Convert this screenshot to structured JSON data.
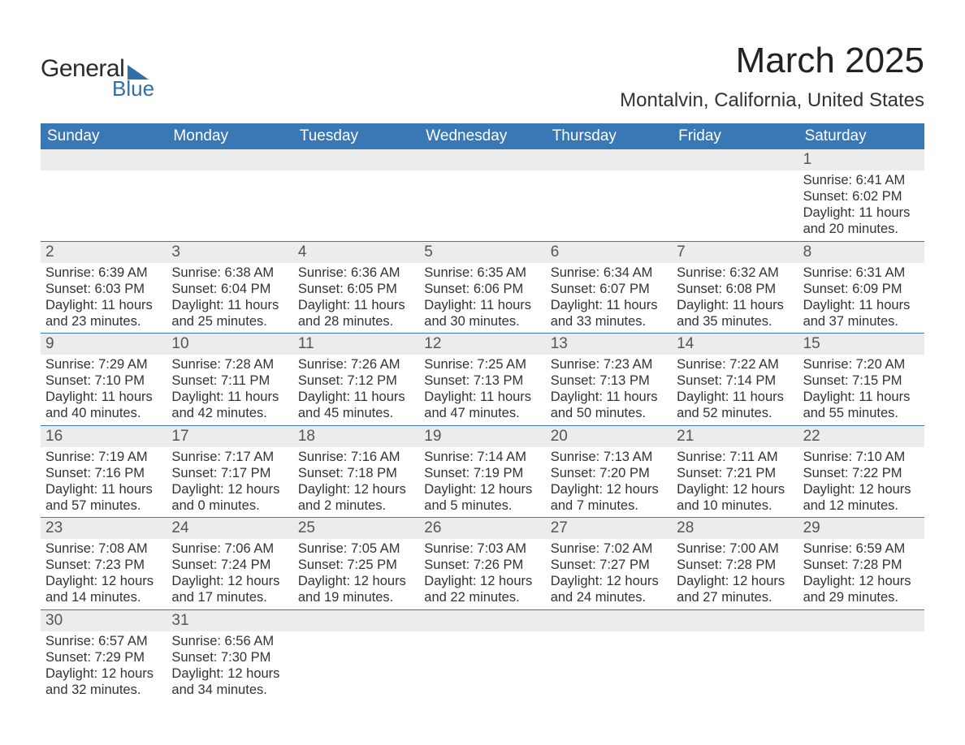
{
  "logo": {
    "text1": "General",
    "text2": "Blue",
    "shape_color": "#2f6fa7"
  },
  "title": "March 2025",
  "location": "Montalvin, California, United States",
  "theme": {
    "header_bg": "#3a78b5",
    "header_fg": "#ffffff",
    "daynum_bg": "#ececec",
    "border": "#3a78b5",
    "text": "#333333"
  },
  "weekdays": [
    "Sunday",
    "Monday",
    "Tuesday",
    "Wednesday",
    "Thursday",
    "Friday",
    "Saturday"
  ],
  "weeks": [
    [
      {
        "n": "",
        "sr": "",
        "ss": "",
        "dl1": "",
        "dl2": ""
      },
      {
        "n": "",
        "sr": "",
        "ss": "",
        "dl1": "",
        "dl2": ""
      },
      {
        "n": "",
        "sr": "",
        "ss": "",
        "dl1": "",
        "dl2": ""
      },
      {
        "n": "",
        "sr": "",
        "ss": "",
        "dl1": "",
        "dl2": ""
      },
      {
        "n": "",
        "sr": "",
        "ss": "",
        "dl1": "",
        "dl2": ""
      },
      {
        "n": "",
        "sr": "",
        "ss": "",
        "dl1": "",
        "dl2": ""
      },
      {
        "n": "1",
        "sr": "Sunrise: 6:41 AM",
        "ss": "Sunset: 6:02 PM",
        "dl1": "Daylight: 11 hours",
        "dl2": "and 20 minutes."
      }
    ],
    [
      {
        "n": "2",
        "sr": "Sunrise: 6:39 AM",
        "ss": "Sunset: 6:03 PM",
        "dl1": "Daylight: 11 hours",
        "dl2": "and 23 minutes."
      },
      {
        "n": "3",
        "sr": "Sunrise: 6:38 AM",
        "ss": "Sunset: 6:04 PM",
        "dl1": "Daylight: 11 hours",
        "dl2": "and 25 minutes."
      },
      {
        "n": "4",
        "sr": "Sunrise: 6:36 AM",
        "ss": "Sunset: 6:05 PM",
        "dl1": "Daylight: 11 hours",
        "dl2": "and 28 minutes."
      },
      {
        "n": "5",
        "sr": "Sunrise: 6:35 AM",
        "ss": "Sunset: 6:06 PM",
        "dl1": "Daylight: 11 hours",
        "dl2": "and 30 minutes."
      },
      {
        "n": "6",
        "sr": "Sunrise: 6:34 AM",
        "ss": "Sunset: 6:07 PM",
        "dl1": "Daylight: 11 hours",
        "dl2": "and 33 minutes."
      },
      {
        "n": "7",
        "sr": "Sunrise: 6:32 AM",
        "ss": "Sunset: 6:08 PM",
        "dl1": "Daylight: 11 hours",
        "dl2": "and 35 minutes."
      },
      {
        "n": "8",
        "sr": "Sunrise: 6:31 AM",
        "ss": "Sunset: 6:09 PM",
        "dl1": "Daylight: 11 hours",
        "dl2": "and 37 minutes."
      }
    ],
    [
      {
        "n": "9",
        "sr": "Sunrise: 7:29 AM",
        "ss": "Sunset: 7:10 PM",
        "dl1": "Daylight: 11 hours",
        "dl2": "and 40 minutes."
      },
      {
        "n": "10",
        "sr": "Sunrise: 7:28 AM",
        "ss": "Sunset: 7:11 PM",
        "dl1": "Daylight: 11 hours",
        "dl2": "and 42 minutes."
      },
      {
        "n": "11",
        "sr": "Sunrise: 7:26 AM",
        "ss": "Sunset: 7:12 PM",
        "dl1": "Daylight: 11 hours",
        "dl2": "and 45 minutes."
      },
      {
        "n": "12",
        "sr": "Sunrise: 7:25 AM",
        "ss": "Sunset: 7:13 PM",
        "dl1": "Daylight: 11 hours",
        "dl2": "and 47 minutes."
      },
      {
        "n": "13",
        "sr": "Sunrise: 7:23 AM",
        "ss": "Sunset: 7:13 PM",
        "dl1": "Daylight: 11 hours",
        "dl2": "and 50 minutes."
      },
      {
        "n": "14",
        "sr": "Sunrise: 7:22 AM",
        "ss": "Sunset: 7:14 PM",
        "dl1": "Daylight: 11 hours",
        "dl2": "and 52 minutes."
      },
      {
        "n": "15",
        "sr": "Sunrise: 7:20 AM",
        "ss": "Sunset: 7:15 PM",
        "dl1": "Daylight: 11 hours",
        "dl2": "and 55 minutes."
      }
    ],
    [
      {
        "n": "16",
        "sr": "Sunrise: 7:19 AM",
        "ss": "Sunset: 7:16 PM",
        "dl1": "Daylight: 11 hours",
        "dl2": "and 57 minutes."
      },
      {
        "n": "17",
        "sr": "Sunrise: 7:17 AM",
        "ss": "Sunset: 7:17 PM",
        "dl1": "Daylight: 12 hours",
        "dl2": "and 0 minutes."
      },
      {
        "n": "18",
        "sr": "Sunrise: 7:16 AM",
        "ss": "Sunset: 7:18 PM",
        "dl1": "Daylight: 12 hours",
        "dl2": "and 2 minutes."
      },
      {
        "n": "19",
        "sr": "Sunrise: 7:14 AM",
        "ss": "Sunset: 7:19 PM",
        "dl1": "Daylight: 12 hours",
        "dl2": "and 5 minutes."
      },
      {
        "n": "20",
        "sr": "Sunrise: 7:13 AM",
        "ss": "Sunset: 7:20 PM",
        "dl1": "Daylight: 12 hours",
        "dl2": "and 7 minutes."
      },
      {
        "n": "21",
        "sr": "Sunrise: 7:11 AM",
        "ss": "Sunset: 7:21 PM",
        "dl1": "Daylight: 12 hours",
        "dl2": "and 10 minutes."
      },
      {
        "n": "22",
        "sr": "Sunrise: 7:10 AM",
        "ss": "Sunset: 7:22 PM",
        "dl1": "Daylight: 12 hours",
        "dl2": "and 12 minutes."
      }
    ],
    [
      {
        "n": "23",
        "sr": "Sunrise: 7:08 AM",
        "ss": "Sunset: 7:23 PM",
        "dl1": "Daylight: 12 hours",
        "dl2": "and 14 minutes."
      },
      {
        "n": "24",
        "sr": "Sunrise: 7:06 AM",
        "ss": "Sunset: 7:24 PM",
        "dl1": "Daylight: 12 hours",
        "dl2": "and 17 minutes."
      },
      {
        "n": "25",
        "sr": "Sunrise: 7:05 AM",
        "ss": "Sunset: 7:25 PM",
        "dl1": "Daylight: 12 hours",
        "dl2": "and 19 minutes."
      },
      {
        "n": "26",
        "sr": "Sunrise: 7:03 AM",
        "ss": "Sunset: 7:26 PM",
        "dl1": "Daylight: 12 hours",
        "dl2": "and 22 minutes."
      },
      {
        "n": "27",
        "sr": "Sunrise: 7:02 AM",
        "ss": "Sunset: 7:27 PM",
        "dl1": "Daylight: 12 hours",
        "dl2": "and 24 minutes."
      },
      {
        "n": "28",
        "sr": "Sunrise: 7:00 AM",
        "ss": "Sunset: 7:28 PM",
        "dl1": "Daylight: 12 hours",
        "dl2": "and 27 minutes."
      },
      {
        "n": "29",
        "sr": "Sunrise: 6:59 AM",
        "ss": "Sunset: 7:28 PM",
        "dl1": "Daylight: 12 hours",
        "dl2": "and 29 minutes."
      }
    ],
    [
      {
        "n": "30",
        "sr": "Sunrise: 6:57 AM",
        "ss": "Sunset: 7:29 PM",
        "dl1": "Daylight: 12 hours",
        "dl2": "and 32 minutes."
      },
      {
        "n": "31",
        "sr": "Sunrise: 6:56 AM",
        "ss": "Sunset: 7:30 PM",
        "dl1": "Daylight: 12 hours",
        "dl2": "and 34 minutes."
      },
      {
        "n": "",
        "sr": "",
        "ss": "",
        "dl1": "",
        "dl2": ""
      },
      {
        "n": "",
        "sr": "",
        "ss": "",
        "dl1": "",
        "dl2": ""
      },
      {
        "n": "",
        "sr": "",
        "ss": "",
        "dl1": "",
        "dl2": ""
      },
      {
        "n": "",
        "sr": "",
        "ss": "",
        "dl1": "",
        "dl2": ""
      },
      {
        "n": "",
        "sr": "",
        "ss": "",
        "dl1": "",
        "dl2": ""
      }
    ]
  ]
}
